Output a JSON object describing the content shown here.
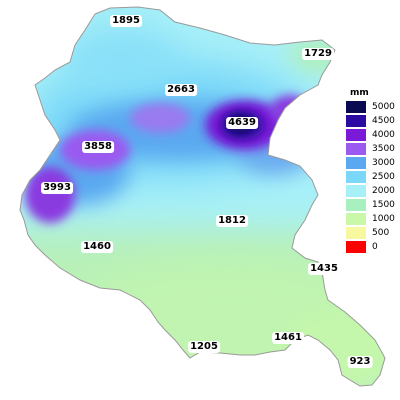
{
  "map": {
    "labels": [
      "1895",
      "1729",
      "2663",
      "4639",
      "3858",
      "3993",
      "1812",
      "1460",
      "1435",
      "1205",
      "1461",
      "923"
    ]
  },
  "legend": {
    "unit": "mm",
    "items": [
      {
        "label": "5000",
        "color": "#0a0a50"
      },
      {
        "label": "4500",
        "color": "#2a0aa0"
      },
      {
        "label": "4000",
        "color": "#7a1ad8"
      },
      {
        "label": "3500",
        "color": "#9a5af0"
      },
      {
        "label": "3000",
        "color": "#5aa8f0"
      },
      {
        "label": "2500",
        "color": "#7ad8f8"
      },
      {
        "label": "2000",
        "color": "#a8f0f8"
      },
      {
        "label": "1500",
        "color": "#a8f0c0"
      },
      {
        "label": "1000",
        "color": "#c8f8a8"
      },
      {
        "label": "500",
        "color": "#f8f8a0"
      },
      {
        "label": "0",
        "color": "#ff0000"
      }
    ]
  }
}
